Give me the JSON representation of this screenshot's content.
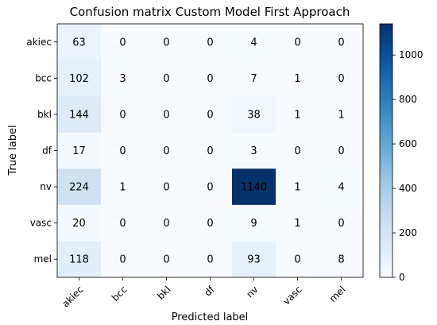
{
  "chart_data": {
    "type": "heatmap",
    "title": "Confusion matrix Custom Model First Approach",
    "xlabel": "Predicted label",
    "ylabel": "True label",
    "x_categories": [
      "akiec",
      "bcc",
      "bkl",
      "df",
      "nv",
      "vasc",
      "mel"
    ],
    "y_categories": [
      "akiec",
      "bcc",
      "bkl",
      "df",
      "nv",
      "vasc",
      "mel"
    ],
    "values": [
      [
        63,
        0,
        0,
        0,
        4,
        0,
        0
      ],
      [
        102,
        3,
        0,
        0,
        7,
        1,
        0
      ],
      [
        144,
        0,
        0,
        0,
        38,
        1,
        1
      ],
      [
        17,
        0,
        0,
        0,
        3,
        0,
        0
      ],
      [
        224,
        1,
        0,
        0,
        1140,
        1,
        4
      ],
      [
        20,
        0,
        0,
        0,
        9,
        1,
        0
      ],
      [
        118,
        0,
        0,
        0,
        93,
        0,
        8
      ]
    ],
    "colormap": "Blues",
    "colorbar": {
      "range": [
        0,
        1140
      ],
      "ticks": [
        0,
        200,
        400,
        600,
        800,
        1000
      ]
    },
    "grid": false
  }
}
